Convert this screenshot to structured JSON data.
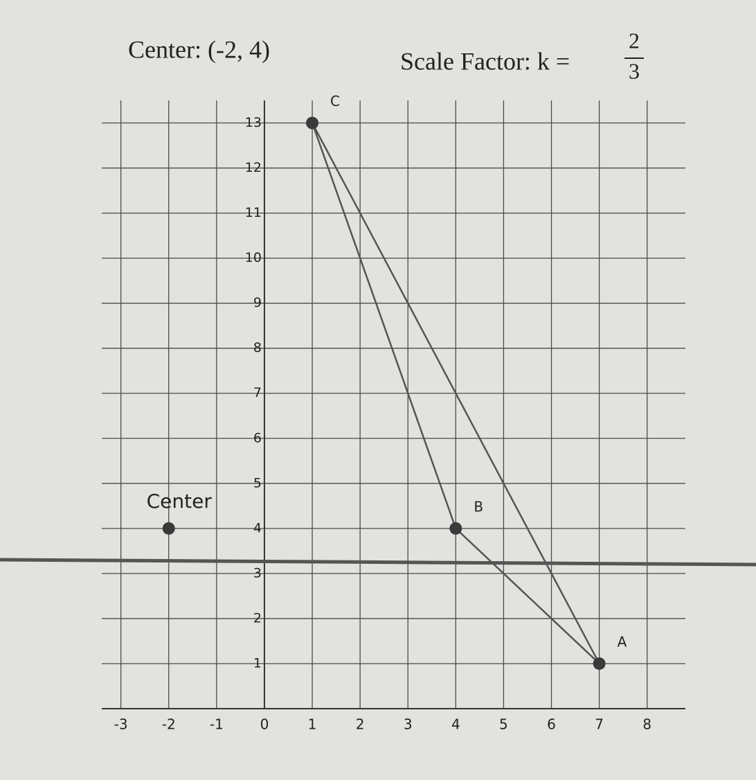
{
  "chart_data": {
    "type": "scatter",
    "title": "Center: (-2, 4)",
    "scale_factor_label": "Scale Factor: k =",
    "scale_factor_numerator": "2",
    "scale_factor_denominator": "3",
    "x": [
      -2,
      7,
      4,
      1
    ],
    "values": [
      4,
      1,
      4,
      13
    ],
    "point_labels": [
      "Center",
      "A",
      "B",
      "C"
    ],
    "color": "#3a3a3a",
    "xlim": [
      -3.4,
      8.8
    ],
    "xticks": [
      -3,
      -2,
      -1,
      0,
      1,
      2,
      3,
      4,
      5,
      6,
      7,
      8
    ],
    "ylim": [
      0,
      13.5
    ],
    "yticks": [
      1,
      2,
      3,
      4,
      5,
      6,
      7,
      8,
      9,
      10,
      11,
      12,
      13
    ],
    "grid": true
  }
}
